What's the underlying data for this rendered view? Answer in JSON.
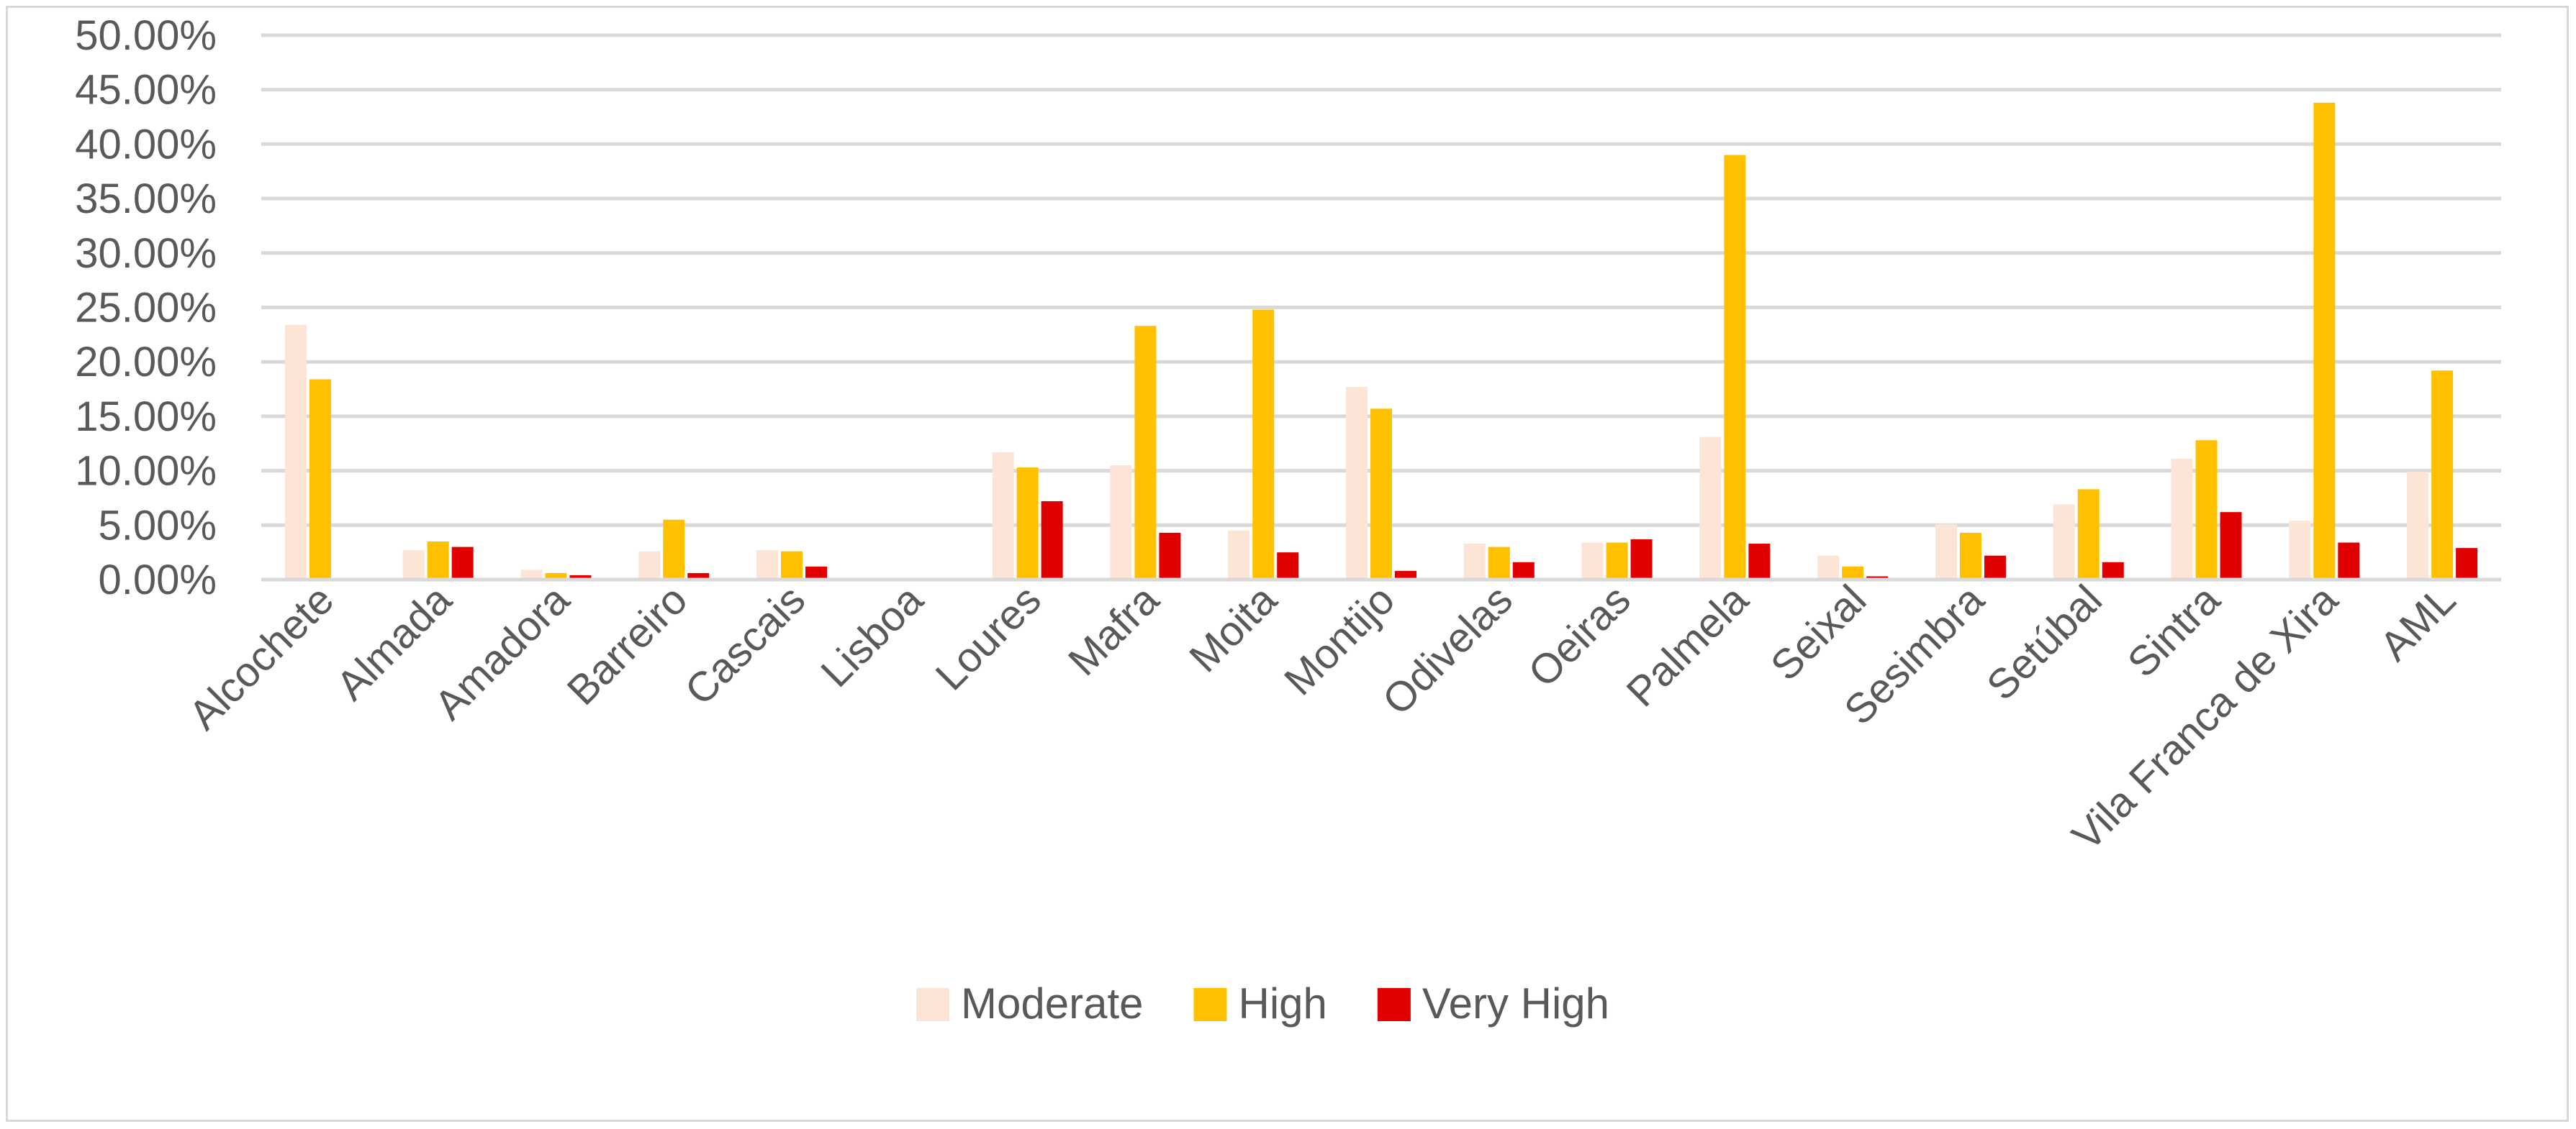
{
  "chart_data": {
    "type": "bar",
    "title": "",
    "xlabel": "",
    "ylabel": "",
    "ylim": [
      0,
      0.5
    ],
    "y_ticks": [
      "0.00%",
      "5.00%",
      "10.00%",
      "15.00%",
      "20.00%",
      "25.00%",
      "30.00%",
      "35.00%",
      "40.00%",
      "45.00%",
      "50.00%"
    ],
    "grid": true,
    "legend_position": "bottom",
    "categories": [
      "Alcochete",
      "Almada",
      "Amadora",
      "Barreiro",
      "Cascais",
      "Lisboa",
      "Loures",
      "Mafra",
      "Moita",
      "Montijo",
      "Odivelas",
      "Oeiras",
      "Palmela",
      "Seixal",
      "Sesimbra",
      "Setúbal",
      "Sintra",
      "Vila Franca de Xira",
      "AML"
    ],
    "series": [
      {
        "name": "Moderate",
        "color": "#fce4d6",
        "values": [
          0.234,
          0.027,
          0.009,
          0.026,
          0.027,
          0.0,
          0.117,
          0.105,
          0.045,
          0.177,
          0.033,
          0.034,
          0.131,
          0.022,
          0.051,
          0.069,
          0.111,
          0.054,
          0.099
        ]
      },
      {
        "name": "High",
        "color": "#ffc000",
        "values": [
          0.184,
          0.035,
          0.006,
          0.055,
          0.026,
          0.0,
          0.103,
          0.233,
          0.248,
          0.157,
          0.03,
          0.034,
          0.39,
          0.012,
          0.043,
          0.083,
          0.128,
          0.438,
          0.192
        ]
      },
      {
        "name": "Very High",
        "color": "#e00000",
        "values": [
          0.0,
          0.03,
          0.004,
          0.006,
          0.012,
          0.0,
          0.072,
          0.043,
          0.025,
          0.008,
          0.016,
          0.037,
          0.033,
          0.003,
          0.022,
          0.016,
          0.062,
          0.034,
          0.029
        ]
      }
    ]
  }
}
